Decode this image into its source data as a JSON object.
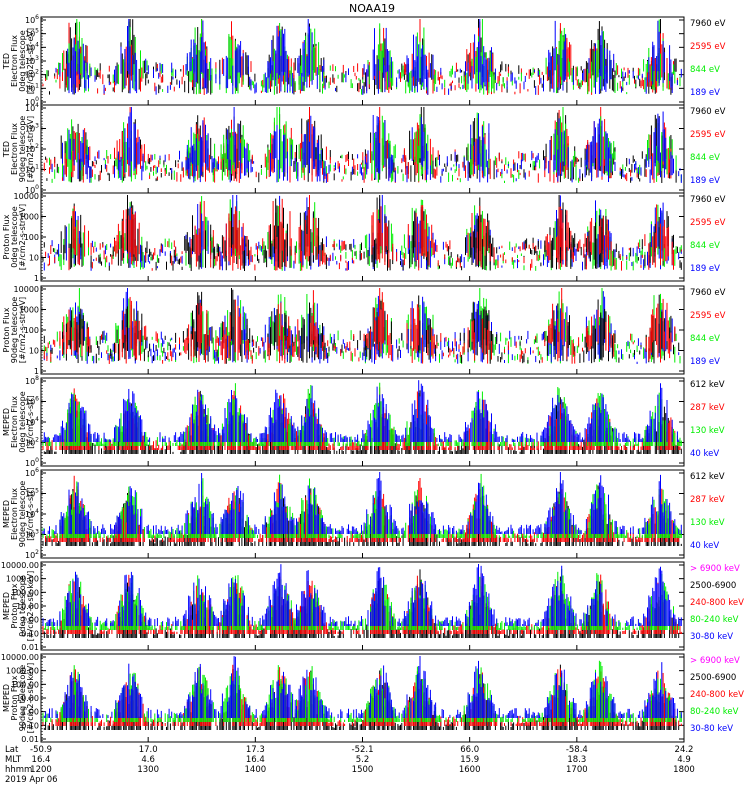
{
  "title": "NOAA19",
  "colors": {
    "black": "#000000",
    "red": "#ff0000",
    "green": "#00ee00",
    "blue": "#0000ff",
    "magenta": "#ff00ff"
  },
  "footer": {
    "row_labels": [
      "Lat",
      "MLT",
      "hhmm"
    ],
    "date": "2019 Apr 06",
    "ticks": [
      {
        "lat": "-50.9",
        "mlt": "16.4",
        "hhmm": "1200"
      },
      {
        "lat": "17.0",
        "mlt": "4.6",
        "hhmm": "1300"
      },
      {
        "lat": "17.3",
        "mlt": "16.4",
        "hhmm": "1400"
      },
      {
        "lat": "-52.1",
        "mlt": "5.2",
        "hhmm": "1500"
      },
      {
        "lat": "66.0",
        "mlt": "15.9",
        "hhmm": "1600"
      },
      {
        "lat": "-58.4",
        "mlt": "18.3",
        "hhmm": "1700"
      },
      {
        "lat": "24.2",
        "mlt": "4.9",
        "hhmm": "1800"
      }
    ]
  },
  "chart_data": [
    {
      "type": "scatter",
      "ylabel": [
        "TED",
        "Electron Flux",
        "0deg telescope",
        "[#/cm2-s-str-eV]"
      ],
      "yticks": [
        "10^0",
        "10^1",
        "10^2",
        "10^3",
        "10^4",
        "10^5",
        "10^6"
      ],
      "tick_style": "exp",
      "legend": [
        {
          "name": "7960 eV",
          "color": "black"
        },
        {
          "name": "2595 eV",
          "color": "red"
        },
        {
          "name": "844 eV",
          "color": "green"
        },
        {
          "name": "189 eV",
          "color": "blue"
        }
      ]
    },
    {
      "type": "scatter",
      "ylabel": [
        "TED",
        "Electron Flux",
        "90deg telescope",
        "[#/cm2-s-str-eV]"
      ],
      "yticks": [
        "10^0",
        "10^1",
        "10^2",
        "10^3",
        "10^4"
      ],
      "tick_style": "exp",
      "legend": [
        {
          "name": "7960 eV",
          "color": "black"
        },
        {
          "name": "2595 eV",
          "color": "red"
        },
        {
          "name": "844 eV",
          "color": "green"
        },
        {
          "name": "189 eV",
          "color": "blue"
        }
      ]
    },
    {
      "type": "scatter",
      "ylabel": [
        "Proton Flux",
        "0deg telescope",
        "[#/cm2-s-str-eV]"
      ],
      "yticks": [
        "1",
        "10",
        "100",
        "1000",
        "10000"
      ],
      "tick_style": "plain",
      "legend": [
        {
          "name": "7960 eV",
          "color": "black"
        },
        {
          "name": "2595 eV",
          "color": "red"
        },
        {
          "name": "844 eV",
          "color": "green"
        },
        {
          "name": "189 eV",
          "color": "blue"
        }
      ]
    },
    {
      "type": "scatter",
      "ylabel": [
        "Proton Flux",
        "90deg telescope",
        "[#/cm2-s-str-eV]"
      ],
      "yticks": [
        "1",
        "10",
        "100",
        "1000",
        "10000"
      ],
      "tick_style": "plain",
      "legend": [
        {
          "name": "7960 eV",
          "color": "black"
        },
        {
          "name": "2595 eV",
          "color": "red"
        },
        {
          "name": "844 eV",
          "color": "green"
        },
        {
          "name": "189 eV",
          "color": "blue"
        }
      ]
    },
    {
      "type": "scatter",
      "ylabel": [
        "MEPED",
        "Electron Flux",
        "0deg telescope",
        "[#/cm2-s-str]"
      ],
      "yticks": [
        "10^0",
        "10^2",
        "10^4",
        "10^6",
        "10^8"
      ],
      "tick_style": "exp",
      "legend": [
        {
          "name": "612 keV",
          "color": "black"
        },
        {
          "name": "287 keV",
          "color": "red"
        },
        {
          "name": "130 keV",
          "color": "green"
        },
        {
          "name": "40 keV",
          "color": "blue"
        }
      ]
    },
    {
      "type": "scatter",
      "ylabel": [
        "MEPED",
        "Electron Flux",
        "90deg telescope",
        "[#/cm2-s-str]"
      ],
      "yticks": [
        "10^2",
        "10^3",
        "10^4",
        "10^5",
        "10^6"
      ],
      "tick_style": "exp",
      "legend": [
        {
          "name": "612 keV",
          "color": "black"
        },
        {
          "name": "287 keV",
          "color": "red"
        },
        {
          "name": "130 keV",
          "color": "green"
        },
        {
          "name": "40 keV",
          "color": "blue"
        }
      ]
    },
    {
      "type": "scatter",
      "ylabel": [
        "MEPED",
        "Proton Flux",
        "0deg telescope",
        "[#/cm2-s-str-keV]"
      ],
      "yticks": [
        "0.01",
        "0.10",
        "1.00",
        "10.00",
        "100.00",
        "1000.00",
        "10000.00"
      ],
      "tick_style": "plain",
      "legend": [
        {
          "name": "> 6900 keV",
          "color": "magenta"
        },
        {
          "name": "2500-6900",
          "color": "black"
        },
        {
          "name": "240-800 keV",
          "color": "red"
        },
        {
          "name": "80-240 keV",
          "color": "green"
        },
        {
          "name": "30-80 keV",
          "color": "blue"
        }
      ]
    },
    {
      "type": "scatter",
      "ylabel": [
        "MEPED",
        "Proton Flux",
        "90deg telescope",
        "[#/cm2-s-str-keV]"
      ],
      "yticks": [
        "0.01",
        "0.10",
        "1.00",
        "10.00",
        "100.00",
        "1000.00",
        "10000.00"
      ],
      "tick_style": "plain",
      "legend": [
        {
          "name": "> 6900 keV",
          "color": "magenta"
        },
        {
          "name": "2500-6900",
          "color": "black"
        },
        {
          "name": "240-800 keV",
          "color": "red"
        },
        {
          "name": "80-240 keV",
          "color": "green"
        },
        {
          "name": "30-80 keV",
          "color": "blue"
        }
      ]
    }
  ]
}
